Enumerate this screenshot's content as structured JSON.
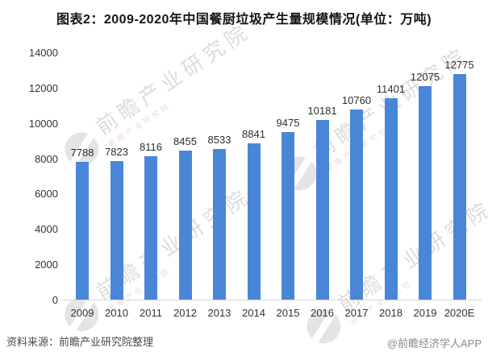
{
  "title": "图表2：2009-2020年中国餐厨垃圾产生量规模情况(单位：万吨)",
  "chart_data": {
    "type": "bar",
    "title": "图表2：2009-2020年中国餐厨垃圾产生量规模情况(单位：万吨)",
    "categories": [
      "2009",
      "2010",
      "2011",
      "2012",
      "2013",
      "2014",
      "2015",
      "2016",
      "2017",
      "2018",
      "2019",
      "2020E"
    ],
    "values": [
      7788,
      7823,
      8116,
      8455,
      8533,
      8841,
      9475,
      10181,
      10760,
      11401,
      12075,
      12775
    ],
    "xlabel": "",
    "ylabel": "",
    "ylim": [
      0,
      14000
    ],
    "yticks": [
      0,
      2000,
      4000,
      6000,
      8000,
      10000,
      12000,
      14000
    ],
    "grid": false,
    "legend": "none",
    "bar_color": "#4a86d8",
    "unit": "万吨"
  },
  "footer": {
    "source": "资料来源：前瞻产业研究院整理",
    "credit": "@前瞻经济学人APP"
  },
  "watermark": {
    "text": "前瞻产业研究院"
  }
}
